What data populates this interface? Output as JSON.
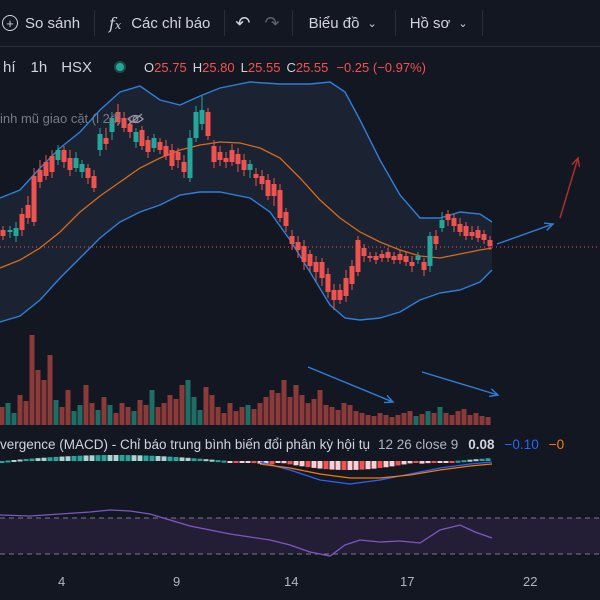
{
  "toolbar": {
    "compare_label": "So sánh",
    "indicators_label": "Các chỉ báo",
    "chart_label": "Biểu đồ",
    "profile_label": "Hồ sơ"
  },
  "legend": {
    "symbol": "hí",
    "timeframe": "1h",
    "exchange": "HSX",
    "o_key": "O",
    "o_val": "25.75",
    "h_key": "H",
    "h_val": "25.80",
    "l_key": "L",
    "l_val": "25.55",
    "c_key": "C",
    "c_val": "25.55",
    "change": "−0.25 (−0.97%)"
  },
  "bb_label": "inh mũ giao cặt (l 2đ)",
  "macd": {
    "title": "vergence (MACD) - Chỉ báo trung bình biến đổi phân kỳ hội tụ",
    "params": "12 26 close 9",
    "v1": "0.08",
    "v2": "−0.10",
    "v3": "−0"
  },
  "x_axis": {
    "ticks": [
      "4",
      "9",
      "14",
      "17",
      "22"
    ]
  },
  "colors": {
    "background": "#131722",
    "up": "#26a69a",
    "down": "#ef5350",
    "bollinger": "#2f7fd8",
    "basis": "#d66a1d",
    "macd_line": "#2962ff",
    "signal_line": "#f57c00",
    "rsi": "#7e57c2",
    "drawing_blue": "#2f7fd8",
    "drawing_red": "#b03030"
  },
  "icons": [
    "plus-circle-icon",
    "fx-icon",
    "undo-icon",
    "redo-icon",
    "chevron-down-icon",
    "eye-off-icon"
  ]
}
